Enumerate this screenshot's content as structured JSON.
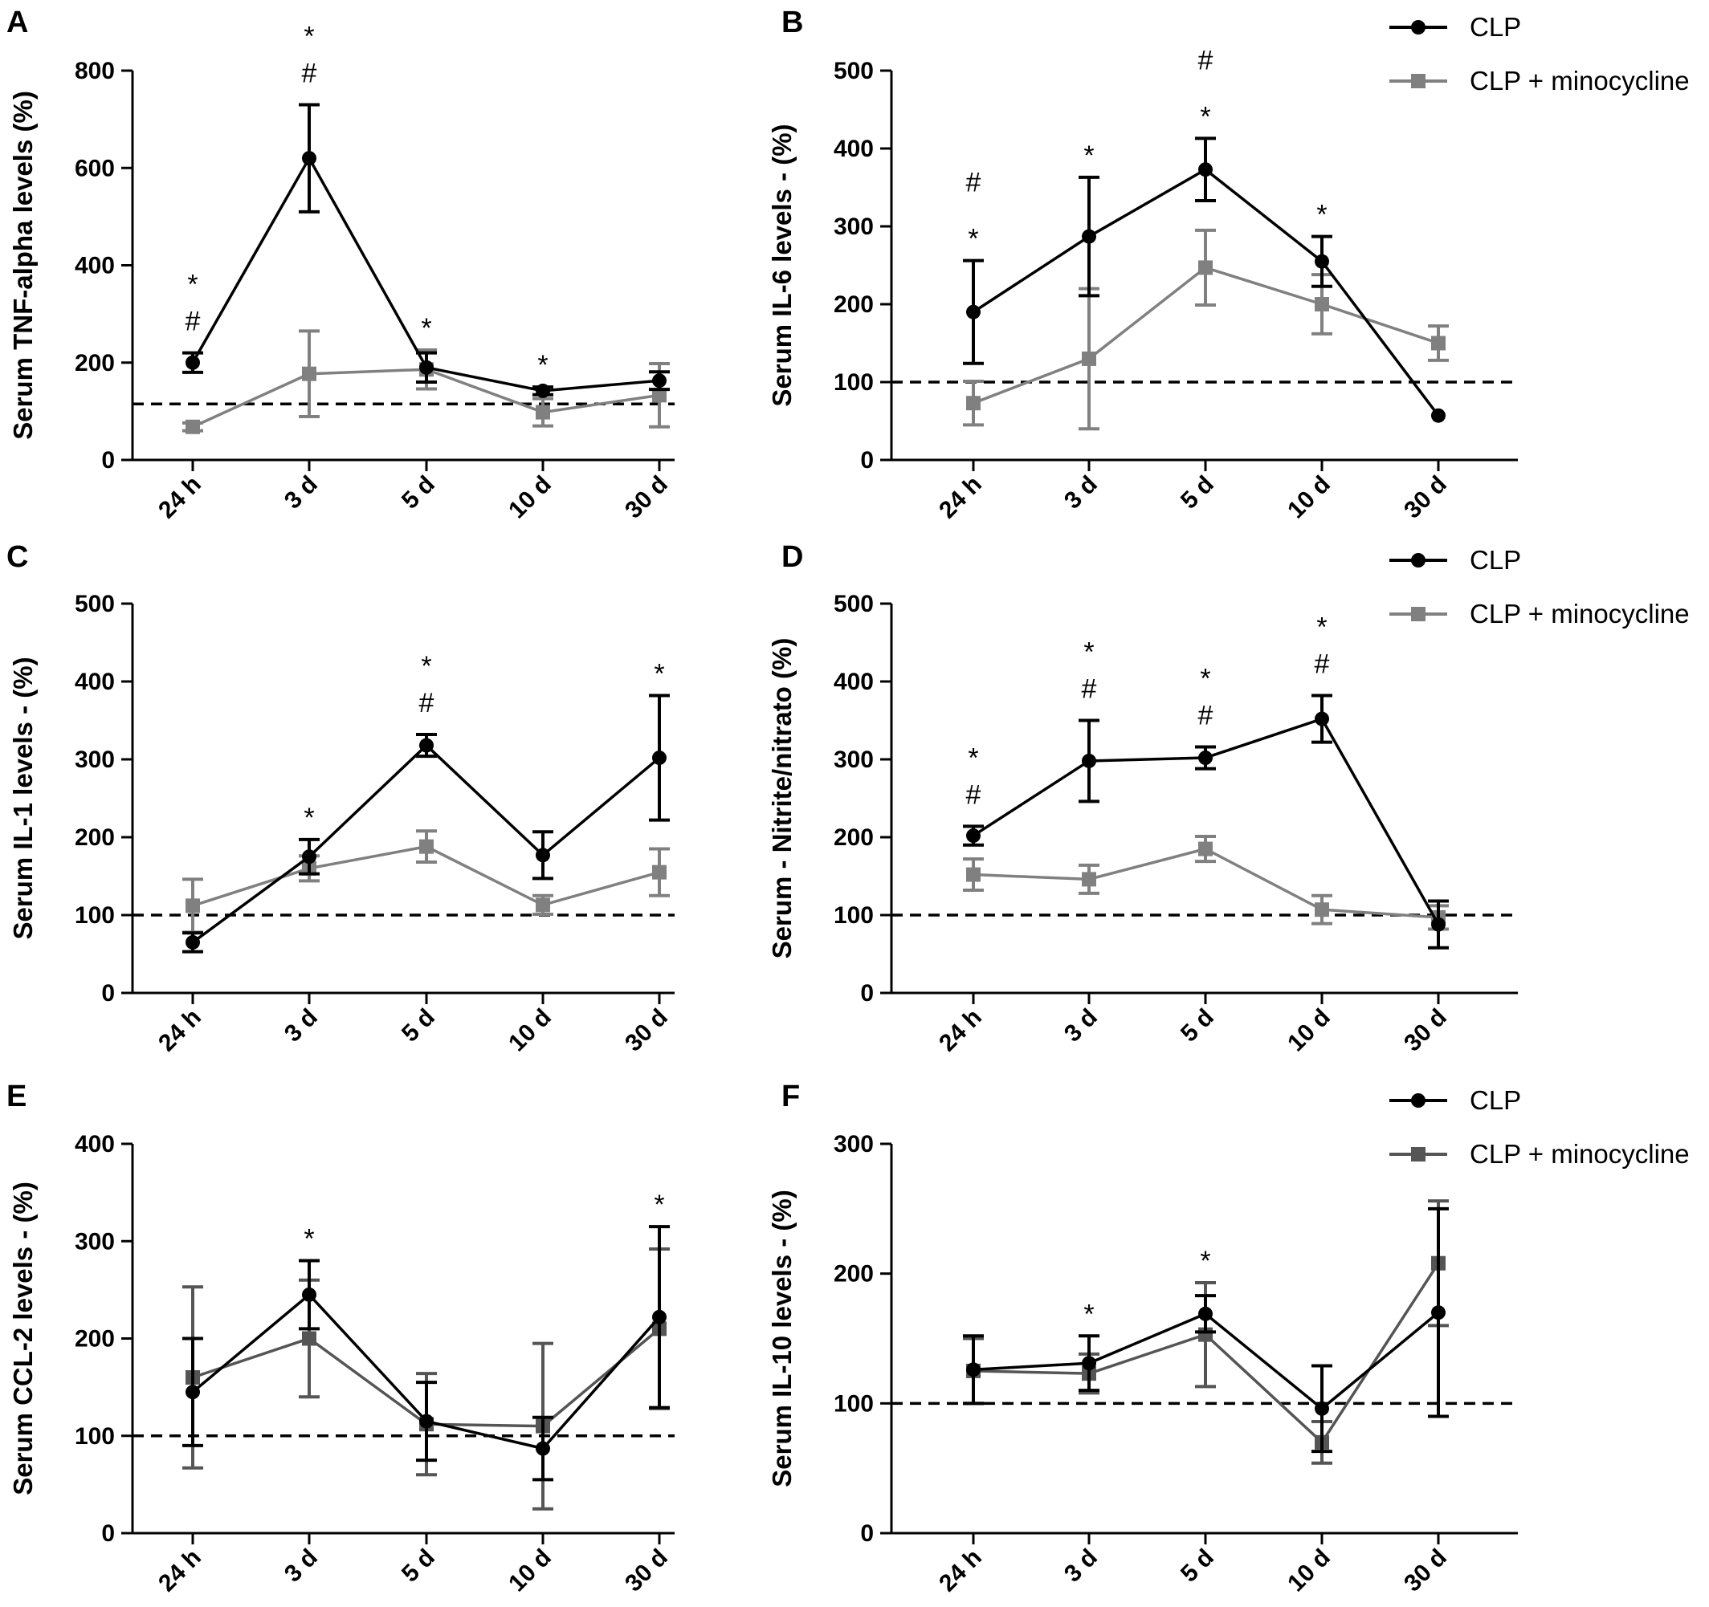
{
  "colors": {
    "clp": "#000000",
    "mino_light": "#808080",
    "mino_dark": "#555555",
    "reference": "#000000"
  },
  "legend": {
    "clp": "CLP",
    "mino": "CLP + minocycline"
  },
  "chart_data": [
    {
      "panel": "A",
      "type": "line",
      "ylabel": "Serum TNF-alpha levels (%)",
      "categories": [
        "24 h",
        "3 d",
        "5 d",
        "10 d",
        "30 d"
      ],
      "ylim": [
        0,
        800
      ],
      "yticks": [
        0,
        200,
        400,
        600,
        800
      ],
      "reference_line": 115,
      "legend": false,
      "mino_color": "mino_light",
      "series": [
        {
          "name": "CLP",
          "values": [
            200,
            620,
            190,
            142,
            163
          ],
          "err": [
            20,
            110,
            30,
            8,
            18
          ]
        },
        {
          "name": "CLP + minocycline",
          "values": [
            68,
            177,
            186,
            98,
            133
          ],
          "err": [
            8,
            88,
            40,
            28,
            65
          ]
        }
      ],
      "annotations": [
        {
          "category": 0,
          "lines": [
            "*",
            "#"
          ]
        },
        {
          "category": 1,
          "lines": [
            "*",
            "#"
          ]
        },
        {
          "category": 2,
          "lines": [
            "*"
          ]
        },
        {
          "category": 3,
          "lines": [
            "*"
          ]
        }
      ]
    },
    {
      "panel": "B",
      "type": "line",
      "ylabel": "Serum IL-6 levels - (%)",
      "categories": [
        "24 h",
        "3 d",
        "5 d",
        "10 d",
        "30 d"
      ],
      "ylim": [
        0,
        500
      ],
      "yticks": [
        0,
        100,
        200,
        300,
        400,
        500
      ],
      "reference_line": 100,
      "legend": true,
      "mino_color": "mino_light",
      "series": [
        {
          "name": "CLP",
          "values": [
            190,
            287,
            373,
            255,
            57
          ],
          "err": [
            66,
            76,
            40,
            32,
            0
          ]
        },
        {
          "name": "CLP + minocycline",
          "values": [
            73,
            130,
            247,
            200,
            150
          ],
          "err": [
            28,
            90,
            48,
            38,
            22
          ]
        }
      ],
      "annotations": [
        {
          "category": 0,
          "lines": [
            "#",
            "*"
          ]
        },
        {
          "category": 1,
          "lines": [
            "*"
          ]
        },
        {
          "category": 2,
          "lines": [
            "#",
            "*"
          ]
        },
        {
          "category": 3,
          "lines": [
            "*"
          ]
        }
      ]
    },
    {
      "panel": "C",
      "type": "line",
      "ylabel": "Serum IL-1 levels - (%)",
      "categories": [
        "24 h",
        "3 d",
        "5 d",
        "10 d",
        "30 d"
      ],
      "ylim": [
        0,
        500
      ],
      "yticks": [
        0,
        100,
        200,
        300,
        400,
        500
      ],
      "reference_line": 100,
      "legend": false,
      "mino_color": "mino_light",
      "series": [
        {
          "name": "CLP",
          "values": [
            65,
            175,
            318,
            177,
            302
          ],
          "err": [
            12,
            22,
            14,
            30,
            80
          ]
        },
        {
          "name": "CLP + minocycline",
          "values": [
            112,
            160,
            188,
            113,
            155
          ],
          "err": [
            34,
            16,
            20,
            12,
            30
          ]
        }
      ],
      "annotations": [
        {
          "category": 1,
          "lines": [
            "*"
          ]
        },
        {
          "category": 2,
          "lines": [
            "*",
            "#"
          ]
        },
        {
          "category": 4,
          "lines": [
            "*"
          ]
        }
      ]
    },
    {
      "panel": "D",
      "type": "line",
      "ylabel": "Serum - Nitrite/nitrato (%)",
      "categories": [
        "24 h",
        "3 d",
        "5 d",
        "10 d",
        "30 d"
      ],
      "ylim": [
        0,
        500
      ],
      "yticks": [
        0,
        100,
        200,
        300,
        400,
        500
      ],
      "reference_line": 100,
      "legend": true,
      "mino_color": "mino_light",
      "series": [
        {
          "name": "CLP",
          "values": [
            202,
            298,
            302,
            352,
            88
          ],
          "err": [
            12,
            52,
            14,
            30,
            30
          ]
        },
        {
          "name": "CLP + minocycline",
          "values": [
            152,
            146,
            185,
            107,
            97
          ],
          "err": [
            20,
            18,
            16,
            18,
            15
          ]
        }
      ],
      "annotations": [
        {
          "category": 0,
          "lines": [
            "*",
            "#"
          ]
        },
        {
          "category": 1,
          "lines": [
            "*",
            "#"
          ]
        },
        {
          "category": 2,
          "lines": [
            "*",
            "#"
          ]
        },
        {
          "category": 3,
          "lines": [
            "*",
            "#"
          ]
        }
      ]
    },
    {
      "panel": "E",
      "type": "line",
      "ylabel": "Serum CCL-2 levels - (%)",
      "categories": [
        "24 h",
        "3 d",
        "5 d",
        "10 d",
        "30 d"
      ],
      "ylim": [
        0,
        400
      ],
      "yticks": [
        0,
        100,
        200,
        300,
        400
      ],
      "reference_line": 100,
      "legend": false,
      "mino_color": "mino_dark",
      "series": [
        {
          "name": "CLP",
          "values": [
            145,
            245,
            115,
            87,
            222
          ],
          "err": [
            55,
            35,
            40,
            32,
            93
          ]
        },
        {
          "name": "CLP + minocycline",
          "values": [
            160,
            200,
            112,
            110,
            210
          ],
          "err": [
            93,
            60,
            52,
            85,
            82
          ]
        }
      ],
      "annotations": [
        {
          "category": 1,
          "lines": [
            "*"
          ]
        },
        {
          "category": 4,
          "lines": [
            "*"
          ]
        }
      ]
    },
    {
      "panel": "F",
      "type": "line",
      "ylabel": "Serum IL-10 levels - (%)",
      "categories": [
        "24 h",
        "3 d",
        "5 d",
        "10 d",
        "30 d"
      ],
      "ylim": [
        0,
        300
      ],
      "yticks": [
        0,
        100,
        200,
        300
      ],
      "reference_line": 100,
      "legend": true,
      "mino_color": "mino_dark",
      "series": [
        {
          "name": "CLP",
          "values": [
            126,
            131,
            169,
            96,
            170
          ],
          "err": [
            26,
            21,
            14,
            33,
            80
          ]
        },
        {
          "name": "CLP + minocycline",
          "values": [
            125,
            123,
            153,
            70,
            208
          ],
          "err": [
            25,
            15,
            40,
            16,
            48
          ]
        }
      ],
      "annotations": [
        {
          "category": 1,
          "lines": [
            "*"
          ]
        },
        {
          "category": 2,
          "lines": [
            "*"
          ]
        }
      ]
    }
  ]
}
